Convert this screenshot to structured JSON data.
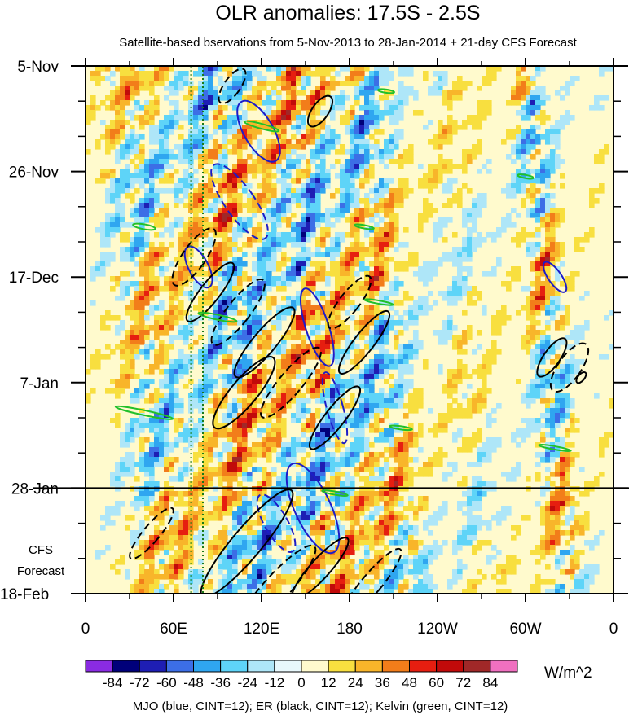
{
  "chart_data": {
    "type": "heatmap",
    "title": "OLR anomalies: 17.5S - 2.5S",
    "subtitle": "Satellite-based bservations from 5-Nov-2013 to 28-Jan-2014 + 21-day CFS Forecast",
    "x_ticks": [
      "0",
      "60E",
      "120E",
      "180",
      "120W",
      "60W",
      "0"
    ],
    "x_lim": [
      0,
      360
    ],
    "y_ticks": [
      "5-Nov",
      "26-Nov",
      "17-Dec",
      "7-Jan",
      "28-Jan",
      "18-Feb"
    ],
    "y_lim_days": [
      0,
      105
    ],
    "observation_end": "28-Jan",
    "forecast_label": [
      "CFS",
      "Forecast"
    ],
    "reference_lines_lon": [
      72,
      80
    ],
    "colorbar": {
      "levels": [
        "-84",
        "-72",
        "-60",
        "-48",
        "-36",
        "-24",
        "-12",
        "0",
        "12",
        "24",
        "36",
        "48",
        "60",
        "72",
        "84"
      ],
      "colors": [
        "#8a2be2",
        "#00007a",
        "#1e1eb4",
        "#3c6ee6",
        "#2fa6f0",
        "#5ed4f8",
        "#aee6f8",
        "#e8f8fc",
        "#fffacd",
        "#f8df3f",
        "#f8b52a",
        "#f27d1a",
        "#e61e10",
        "#c10a0a",
        "#a02828",
        "#f070c0"
      ],
      "unit": "W/m^2"
    },
    "footnote": "MJO (blue, CINT=12); ER (black, CINT=12); Kelvin (green, CINT=12)"
  }
}
